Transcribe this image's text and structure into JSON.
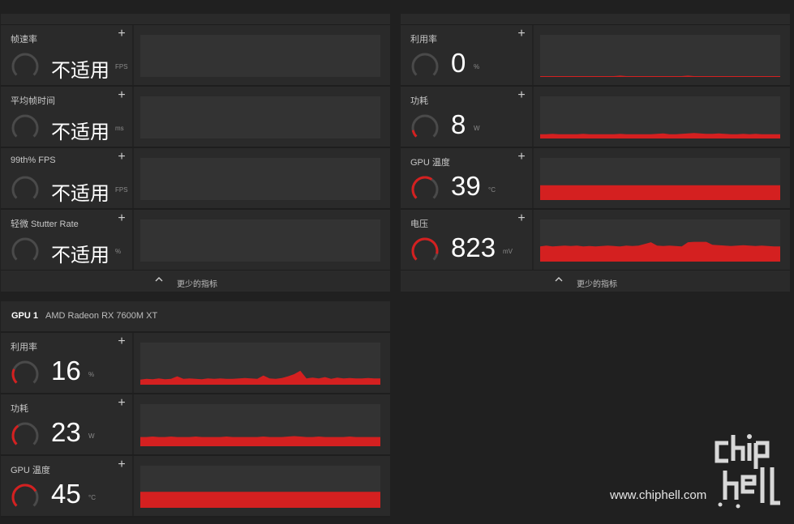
{
  "colors": {
    "accent": "#d42020",
    "panel": "#2a2a2a",
    "background": "#202020",
    "chart_bg": "#333333",
    "gauge_track": "#4a4a4a"
  },
  "left_panel": {
    "metrics": [
      {
        "label": "帧速率",
        "value": "不适用",
        "unit": "FPS",
        "gauge_fraction": 0,
        "series": []
      },
      {
        "label": "平均帧时间",
        "value": "不适用",
        "unit": "ms",
        "gauge_fraction": 0,
        "series": []
      },
      {
        "label": "99th% FPS",
        "value": "不适用",
        "unit": "FPS",
        "gauge_fraction": 0,
        "series": []
      },
      {
        "label": "轻微 Stutter Rate",
        "value": "不适用",
        "unit": "%",
        "gauge_fraction": 0,
        "series": []
      }
    ],
    "footer_label": "更少的指标"
  },
  "right_panel": {
    "metrics": [
      {
        "label": "利用率",
        "value": "0",
        "unit": "%",
        "gauge_fraction": 0.0,
        "series": [
          0.02,
          0.02,
          0.02,
          0.02,
          0.02,
          0.02,
          0.02,
          0.02,
          0.02,
          0.02,
          0.02,
          0.02,
          0.02,
          0.03,
          0.02,
          0.02,
          0.02,
          0.02,
          0.02,
          0.02,
          0.02,
          0.02,
          0.02,
          0.02,
          0.03,
          0.02,
          0.02,
          0.02,
          0.02,
          0.02,
          0.02,
          0.02,
          0.02,
          0.02,
          0.02,
          0.02,
          0.02,
          0.02,
          0.02,
          0.02
        ]
      },
      {
        "label": "功耗",
        "value": "8",
        "unit": "W",
        "gauge_fraction": 0.08,
        "series": [
          0.1,
          0.1,
          0.11,
          0.1,
          0.1,
          0.1,
          0.1,
          0.11,
          0.1,
          0.1,
          0.1,
          0.1,
          0.1,
          0.11,
          0.1,
          0.1,
          0.1,
          0.1,
          0.1,
          0.11,
          0.12,
          0.1,
          0.1,
          0.11,
          0.12,
          0.13,
          0.12,
          0.11,
          0.11,
          0.12,
          0.11,
          0.1,
          0.1,
          0.11,
          0.1,
          0.11,
          0.1,
          0.1,
          0.1,
          0.1
        ]
      },
      {
        "label": "GPU 温度",
        "value": "39",
        "unit": "°C",
        "gauge_fraction": 0.39,
        "series": [
          0.35,
          0.35,
          0.35,
          0.35,
          0.35,
          0.35,
          0.35,
          0.35,
          0.35,
          0.35,
          0.35,
          0.35,
          0.35,
          0.35,
          0.35,
          0.35,
          0.35,
          0.35,
          0.35,
          0.35,
          0.35,
          0.35,
          0.35,
          0.35,
          0.35,
          0.35,
          0.35,
          0.35,
          0.35,
          0.35,
          0.35,
          0.35,
          0.35,
          0.35,
          0.35,
          0.35,
          0.35,
          0.35,
          0.35,
          0.35
        ]
      },
      {
        "label": "电压",
        "value": "823",
        "unit": "mV",
        "gauge_fraction": 0.55,
        "series": [
          0.36,
          0.38,
          0.36,
          0.37,
          0.38,
          0.37,
          0.38,
          0.36,
          0.37,
          0.36,
          0.37,
          0.38,
          0.37,
          0.36,
          0.38,
          0.37,
          0.38,
          0.42,
          0.46,
          0.38,
          0.37,
          0.38,
          0.37,
          0.36,
          0.46,
          0.47,
          0.47,
          0.47,
          0.4,
          0.39,
          0.38,
          0.37,
          0.38,
          0.39,
          0.38,
          0.37,
          0.38,
          0.37,
          0.36,
          0.36
        ]
      }
    ],
    "footer_label": "更少的指标"
  },
  "gpu_panel": {
    "gpu_id": "GPU 1",
    "gpu_name": "AMD Radeon RX 7600M XT",
    "metrics": [
      {
        "label": "利用率",
        "value": "16",
        "unit": "%",
        "gauge_fraction": 0.16,
        "series": [
          0.12,
          0.14,
          0.13,
          0.15,
          0.13,
          0.14,
          0.2,
          0.14,
          0.15,
          0.14,
          0.13,
          0.15,
          0.14,
          0.15,
          0.14,
          0.14,
          0.15,
          0.16,
          0.15,
          0.14,
          0.22,
          0.15,
          0.14,
          0.16,
          0.2,
          0.25,
          0.33,
          0.15,
          0.17,
          0.15,
          0.18,
          0.14,
          0.17,
          0.15,
          0.16,
          0.15,
          0.15,
          0.16,
          0.15,
          0.15
        ]
      },
      {
        "label": "功耗",
        "value": "23",
        "unit": "W",
        "gauge_fraction": 0.23,
        "series": [
          0.22,
          0.22,
          0.23,
          0.22,
          0.22,
          0.23,
          0.22,
          0.22,
          0.22,
          0.23,
          0.22,
          0.22,
          0.22,
          0.22,
          0.23,
          0.22,
          0.22,
          0.22,
          0.22,
          0.22,
          0.23,
          0.22,
          0.22,
          0.22,
          0.23,
          0.24,
          0.23,
          0.22,
          0.22,
          0.23,
          0.22,
          0.22,
          0.22,
          0.22,
          0.23,
          0.22,
          0.22,
          0.22,
          0.22,
          0.22
        ]
      },
      {
        "label": "GPU 温度",
        "value": "45",
        "unit": "°C",
        "gauge_fraction": 0.45,
        "series": [
          0.38,
          0.38,
          0.38,
          0.38,
          0.38,
          0.38,
          0.38,
          0.38,
          0.38,
          0.38,
          0.38,
          0.38,
          0.38,
          0.38,
          0.38,
          0.38,
          0.38,
          0.38,
          0.38,
          0.38,
          0.38,
          0.38,
          0.38,
          0.38,
          0.38,
          0.38,
          0.38,
          0.38,
          0.38,
          0.38,
          0.38,
          0.38,
          0.38,
          0.38,
          0.38,
          0.38,
          0.38,
          0.38,
          0.38,
          0.38
        ]
      }
    ]
  },
  "watermark": {
    "url": "www.chiphell.com",
    "logo_text": "chiphell"
  }
}
